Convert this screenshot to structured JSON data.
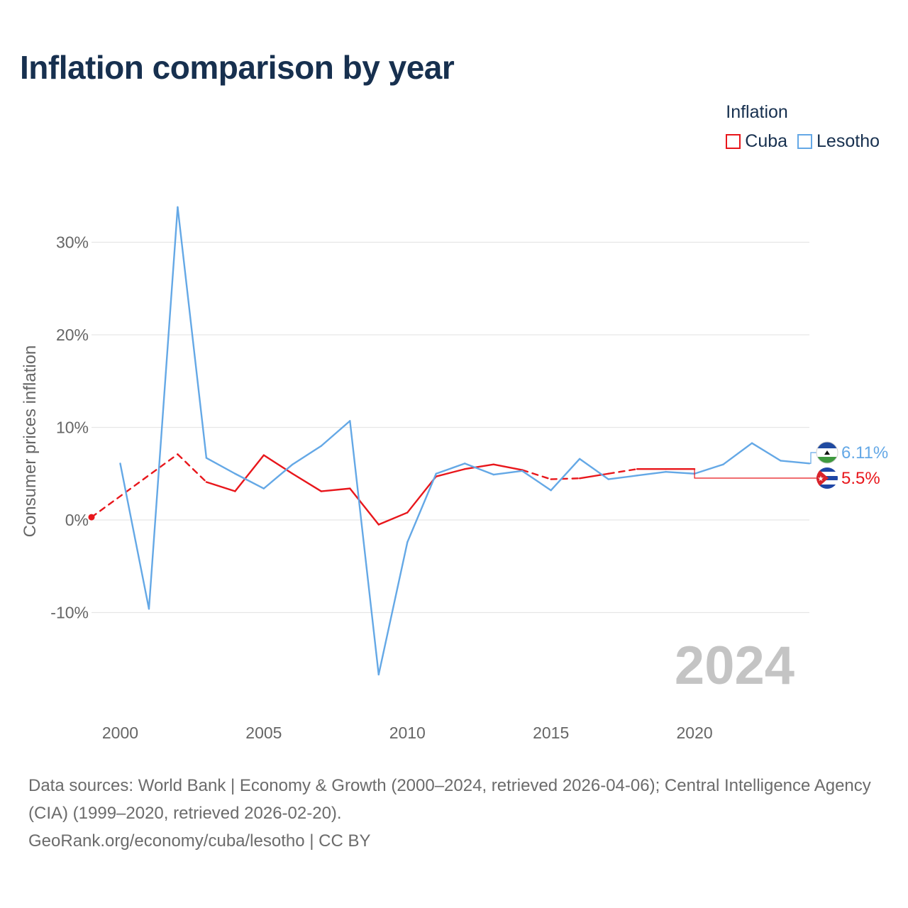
{
  "title": "Inflation comparison by year",
  "legend": {
    "title": "Inflation",
    "items": [
      {
        "name": "Cuba",
        "color": "#e8161b"
      },
      {
        "name": "Lesotho",
        "color": "#64a8e6"
      }
    ]
  },
  "chart_data": {
    "type": "line",
    "title": "Inflation comparison by year",
    "xlabel": "",
    "ylabel": "Consumer prices inflation",
    "xlim": [
      1999,
      2024
    ],
    "ylim": [
      -20,
      35
    ],
    "x_ticks": [
      2000,
      2005,
      2010,
      2015,
      2020
    ],
    "x_tick_labels": [
      "2000",
      "2005",
      "2010",
      "2015",
      "2020"
    ],
    "y_ticks": [
      -10,
      0,
      10,
      20,
      30
    ],
    "y_tick_labels": [
      "-10%",
      "0%",
      "10%",
      "20%",
      "30%"
    ],
    "grid": true,
    "year_watermark": "2024",
    "series": [
      {
        "name": "Cuba",
        "color": "#e8161b",
        "points": [
          {
            "x": 1999,
            "y": 0.3,
            "estimated": true
          },
          {
            "x": 2002,
            "y": 7.1,
            "estimated": true
          },
          {
            "x": 2003,
            "y": 4.1
          },
          {
            "x": 2004,
            "y": 3.1
          },
          {
            "x": 2005,
            "y": 7.0
          },
          {
            "x": 2006,
            "y": 5.0
          },
          {
            "x": 2007,
            "y": 3.1
          },
          {
            "x": 2008,
            "y": 3.4
          },
          {
            "x": 2009,
            "y": -0.5
          },
          {
            "x": 2010,
            "y": 0.8
          },
          {
            "x": 2011,
            "y": 4.7
          },
          {
            "x": 2012,
            "y": 5.5
          },
          {
            "x": 2013,
            "y": 6.0
          },
          {
            "x": 2014,
            "y": 5.4,
            "estimated": true
          },
          {
            "x": 2015,
            "y": 4.4,
            "estimated": true
          },
          {
            "x": 2016,
            "y": 4.5
          },
          {
            "x": 2017,
            "y": 5.0,
            "estimated": true
          },
          {
            "x": 2018,
            "y": 5.5
          },
          {
            "x": 2019,
            "y": 5.5
          },
          {
            "x": 2020,
            "y": 5.5
          }
        ],
        "end_value": 5.5,
        "end_label": "5.5%"
      },
      {
        "name": "Lesotho",
        "color": "#64a8e6",
        "points": [
          {
            "x": 2000,
            "y": 6.1
          },
          {
            "x": 2001,
            "y": -9.6
          },
          {
            "x": 2002,
            "y": 33.8
          },
          {
            "x": 2003,
            "y": 6.7
          },
          {
            "x": 2004,
            "y": 5.0
          },
          {
            "x": 2005,
            "y": 3.4
          },
          {
            "x": 2006,
            "y": 6.0
          },
          {
            "x": 2007,
            "y": 8.0
          },
          {
            "x": 2008,
            "y": 10.7
          },
          {
            "x": 2009,
            "y": -16.7
          },
          {
            "x": 2010,
            "y": -2.4
          },
          {
            "x": 2011,
            "y": 5.0
          },
          {
            "x": 2012,
            "y": 6.1
          },
          {
            "x": 2013,
            "y": 4.9
          },
          {
            "x": 2014,
            "y": 5.3
          },
          {
            "x": 2015,
            "y": 3.2
          },
          {
            "x": 2016,
            "y": 6.6
          },
          {
            "x": 2017,
            "y": 4.4
          },
          {
            "x": 2018,
            "y": 4.8
          },
          {
            "x": 2019,
            "y": 5.2
          },
          {
            "x": 2020,
            "y": 5.0
          },
          {
            "x": 2021,
            "y": 6.0
          },
          {
            "x": 2022,
            "y": 8.3
          },
          {
            "x": 2023,
            "y": 6.4
          },
          {
            "x": 2024,
            "y": 6.11
          }
        ],
        "end_value": 6.11,
        "end_label": "6.11%"
      }
    ]
  },
  "footer": {
    "sources": "Data sources: World Bank | Economy & Growth (2000–2024, retrieved 2026-04-06); Central Intelligence Agency (CIA) (1999–2020, retrieved 2026-02-20).",
    "credit": "GeoRank.org/economy/cuba/lesotho | CC BY"
  }
}
